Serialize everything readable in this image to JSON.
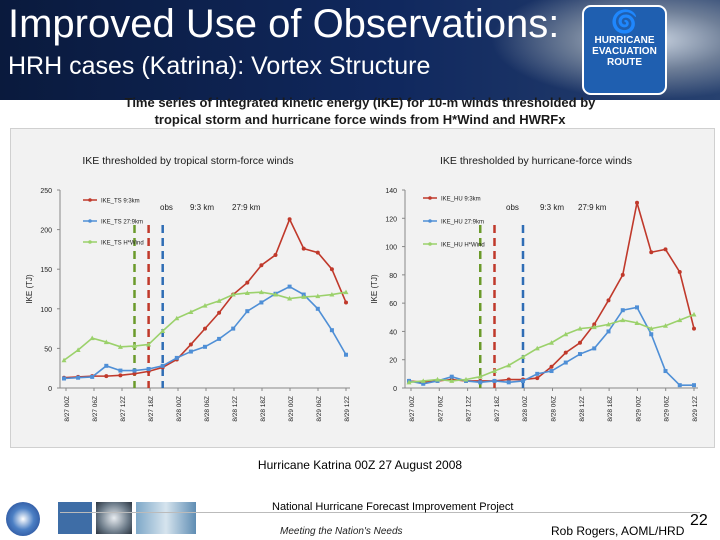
{
  "slide": {
    "title": "Improved Use of Observations:",
    "subtitle": "HRH cases (Katrina): Vortex Structure",
    "logo_text": [
      "HURRICANE",
      "EVACUATION",
      "ROUTE"
    ],
    "banner_line1": "Time series of integrated kinetic energy (IKE) for 10-m winds thresholded by",
    "banner_line2": "tropical storm and hurricane force winds from H*Wind and HWRFx",
    "caption": "Hurricane Katrina 00Z 27 August 2008",
    "footer_project": "National Hurricane Forecast Improvement Project",
    "footer_tagline": "Meeting the Nation's Needs",
    "footer_author": "Rob Rogers, AOML/HRD",
    "page_number": "22"
  },
  "chart_data": [
    {
      "type": "line",
      "title": "IKE thresholded by tropical storm-force winds",
      "ylabel": "IKE (TJ)",
      "xlabel": "",
      "ylim": [
        0,
        250
      ],
      "yticks": [
        0,
        50,
        100,
        150,
        200,
        250
      ],
      "categories": [
        "8/27 00Z",
        "8/27 06Z",
        "8/27 12Z",
        "8/27 18Z",
        "8/28 00Z",
        "8/28 06Z",
        "8/28 12Z",
        "8/28 18Z",
        "8/29 00Z",
        "8/29 06Z",
        "8/29 12Z"
      ],
      "x": [
        0,
        1,
        2,
        3,
        4,
        5,
        6,
        7,
        8,
        9,
        10,
        11,
        12,
        13,
        14,
        15,
        16,
        17,
        18,
        19,
        20
      ],
      "markers": [
        {
          "label": "obs",
          "x": 5,
          "color": "#6b9a2a"
        },
        {
          "label": "9:3 km",
          "x": 6,
          "color": "#c0392b"
        },
        {
          "label": "27:9 km",
          "x": 7,
          "color": "#2f6db5"
        }
      ],
      "series": [
        {
          "name": "IKE_TS 9:3km",
          "color": "#c0392b",
          "values": [
            13,
            14,
            15,
            15,
            16,
            18,
            21,
            26,
            36,
            55,
            75,
            95,
            118,
            133,
            155,
            168,
            213,
            176,
            171,
            150,
            108
          ]
        },
        {
          "name": "IKE_TS 27:9km",
          "color": "#4f8fd6",
          "values": [
            12,
            13,
            14,
            28,
            22,
            22,
            24,
            28,
            38,
            46,
            52,
            62,
            75,
            97,
            108,
            119,
            128,
            118,
            100,
            73,
            42
          ]
        },
        {
          "name": "IKE_TS H*Wind",
          "color": "#9bd16b",
          "values": [
            35,
            48,
            63,
            58,
            52,
            53,
            55,
            72,
            88,
            96,
            104,
            110,
            118,
            120,
            121,
            118,
            113,
            115,
            116,
            118,
            121
          ]
        }
      ]
    },
    {
      "type": "line",
      "title": "IKE thresholded by hurricane-force winds",
      "ylabel": "IKE (TJ)",
      "xlabel": "",
      "ylim": [
        0,
        140
      ],
      "yticks": [
        0,
        20,
        40,
        60,
        80,
        100,
        120,
        140
      ],
      "categories": [
        "8/27 00Z",
        "8/27 06Z",
        "8/27 12Z",
        "8/27 18Z",
        "8/28 00Z",
        "8/28 06Z",
        "8/28 12Z",
        "8/28 18Z",
        "8/29 00Z",
        "8/29 06Z",
        "8/29 12Z"
      ],
      "x": [
        0,
        1,
        2,
        3,
        4,
        5,
        6,
        7,
        8,
        9,
        10,
        11,
        12,
        13,
        14,
        15,
        16,
        17,
        18,
        19,
        20
      ],
      "markers": [
        {
          "label": "obs",
          "x": 5,
          "color": "#6b9a2a"
        },
        {
          "label": "9:3 km",
          "x": 6,
          "color": "#c0392b"
        },
        {
          "label": "27:9 km",
          "x": 8,
          "color": "#2f6db5"
        }
      ],
      "series": [
        {
          "name": "IKE_HU 9:3km",
          "color": "#c0392b",
          "values": [
            5,
            4,
            5,
            6,
            5,
            5,
            5,
            6,
            6,
            7,
            15,
            25,
            32,
            45,
            62,
            80,
            131,
            96,
            98,
            82,
            42
          ]
        },
        {
          "name": "IKE_HU 27:9km",
          "color": "#4f8fd6",
          "values": [
            5,
            3,
            5,
            8,
            5,
            4,
            5,
            4,
            5,
            10,
            12,
            18,
            24,
            28,
            40,
            55,
            57,
            38,
            12,
            2,
            2
          ]
        },
        {
          "name": "IKE_HU H*Wind",
          "color": "#9bd16b",
          "values": [
            4,
            5,
            6,
            5,
            6,
            8,
            12,
            16,
            22,
            28,
            32,
            38,
            42,
            43,
            45,
            48,
            46,
            42,
            44,
            48,
            52
          ]
        }
      ]
    }
  ]
}
